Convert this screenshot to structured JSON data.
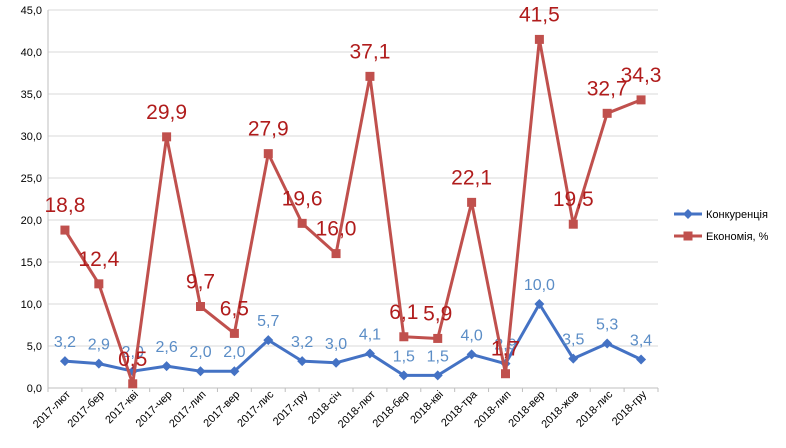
{
  "chart_data": {
    "type": "line",
    "categories": [
      "2017-лют",
      "2017-бер",
      "2017-кві",
      "2017-чер",
      "2017-лип",
      "2017-вер",
      "2017-лис",
      "2017-гру",
      "2018-січ",
      "2018-лют",
      "2018-бер",
      "2018-кві",
      "2018-тра",
      "2018-лип",
      "2018-вер",
      "2018-жов",
      "2018-лис",
      "2018-гру"
    ],
    "ylim": [
      0,
      45
    ],
    "yticks": [
      "0,0",
      "5,0",
      "10,0",
      "15,0",
      "20,0",
      "25,0",
      "30,0",
      "35,0",
      "40,0",
      "45,0"
    ],
    "grid": true,
    "legend_position": "right",
    "series": [
      {
        "name": "Конкуренція",
        "color": "#4472C4",
        "label_color": "#5B8DC6",
        "marker": "diamond",
        "values": [
          3.2,
          2.9,
          2.0,
          2.6,
          2.0,
          2.0,
          5.7,
          3.2,
          3.0,
          4.1,
          1.5,
          1.5,
          4.0,
          2.9,
          10.0,
          3.5,
          5.3,
          3.4
        ],
        "labels": [
          "3,2",
          "2,9",
          "2,0",
          "2,6",
          "2,0",
          "2,0",
          "5,7",
          "3,2",
          "3,0",
          "4,1",
          "1,5",
          "1,5",
          "4,0",
          "2,9",
          "10,0",
          "3,5",
          "5,3",
          "3,4"
        ]
      },
      {
        "name": "Економія, %",
        "color": "#C0504D",
        "label_color": "#B01C1C",
        "marker": "square",
        "values": [
          18.8,
          12.4,
          0.5,
          29.9,
          9.7,
          6.5,
          27.9,
          19.6,
          16.0,
          37.1,
          6.1,
          5.9,
          22.1,
          1.7,
          41.5,
          19.5,
          32.7,
          34.3
        ],
        "labels": [
          "18,8",
          "12,4",
          "0,5",
          "29,9",
          "9,7",
          "6,5",
          "27,9",
          "19,6",
          "16,0",
          "37,1",
          "6,1",
          "5,9",
          "22,1",
          "1,7",
          "41,5",
          "19,5",
          "32,7",
          "34,3"
        ]
      }
    ]
  }
}
